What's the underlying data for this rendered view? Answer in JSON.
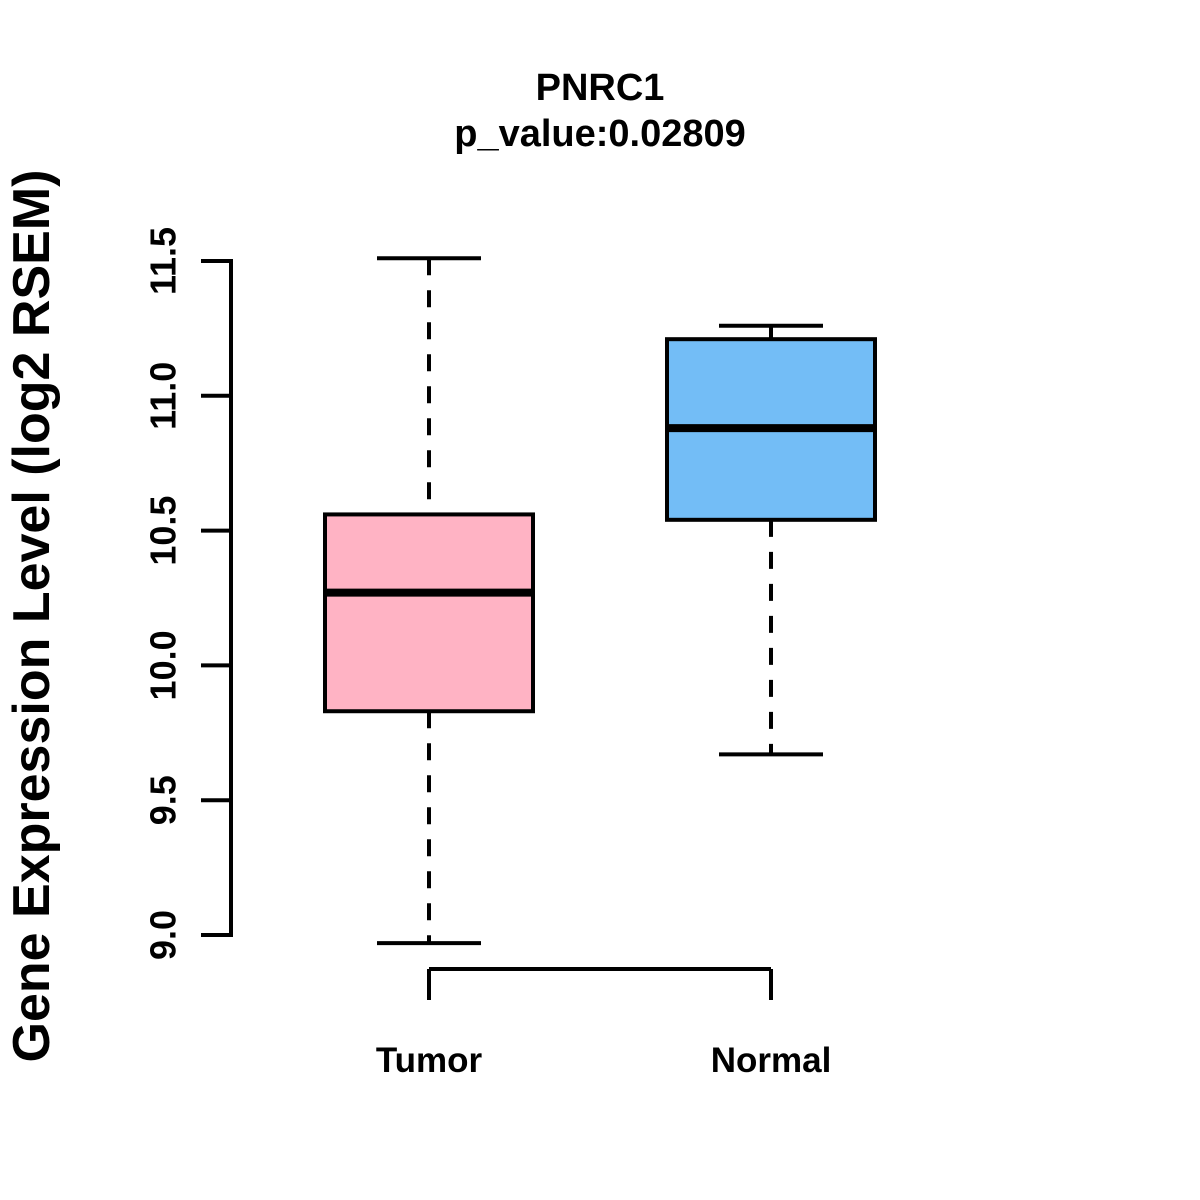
{
  "chart_data": {
    "type": "boxplot",
    "title": "PNRC1",
    "subtitle": "p_value:0.02809",
    "ylabel": "Gene Expression Level (log2 RSEM)",
    "xlabel": "",
    "categories": [
      "Tumor",
      "Normal"
    ],
    "series": [
      {
        "name": "Tumor",
        "box_fill": "#FFB3C4",
        "whisker_low": 8.97,
        "q1": 9.83,
        "median": 10.27,
        "q3": 10.56,
        "whisker_high": 11.51,
        "outliers": []
      },
      {
        "name": "Normal",
        "box_fill": "#73BDF6",
        "whisker_low": 9.67,
        "q1": 10.54,
        "median": 10.88,
        "q3": 11.21,
        "whisker_high": 11.26,
        "outliers": []
      }
    ],
    "yticks": [
      9.0,
      9.5,
      10.0,
      10.5,
      11.0,
      11.5
    ],
    "ytick_labels": [
      "9.0",
      "9.5",
      "10.0",
      "10.5",
      "11.0",
      "11.5"
    ],
    "ylim": [
      8.85,
      11.55
    ],
    "grid": false,
    "legend_position": "none"
  },
  "colors": {
    "background": "#FFFFFF",
    "stroke": "#000000",
    "text": "#000000"
  }
}
